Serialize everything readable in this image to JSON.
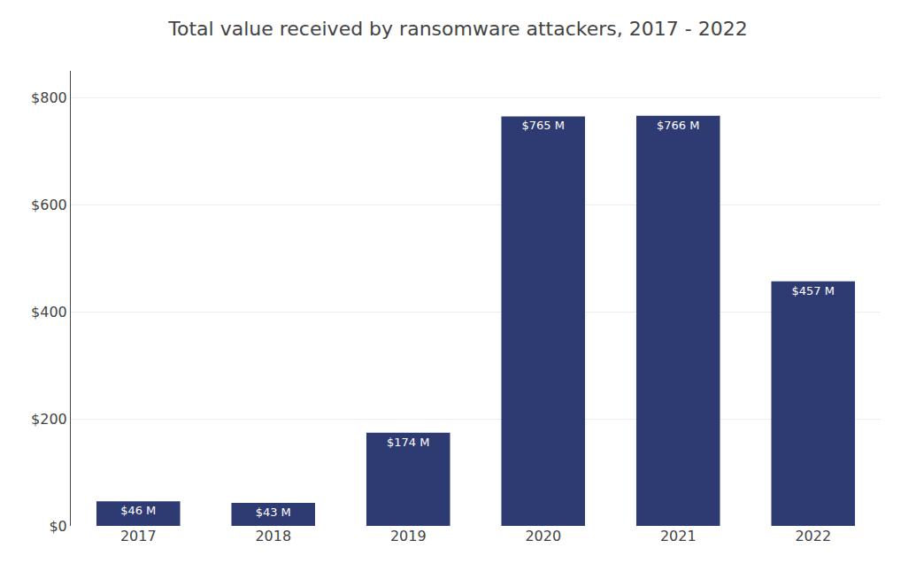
{
  "chart_data": {
    "type": "bar",
    "title": "Total value received by ransomware attackers, 2017 - 2022",
    "categories": [
      "2017",
      "2018",
      "2019",
      "2020",
      "2021",
      "2022"
    ],
    "values": [
      46,
      43,
      174,
      765,
      766,
      457
    ],
    "value_labels": [
      "$46 M",
      "$43 M",
      "$174 M",
      "$765 M",
      "$766 M",
      "$457 M"
    ],
    "data_labels": true,
    "color": "#2E3A72",
    "ylim": [
      0,
      850
    ],
    "yticks": [
      {
        "value": 0,
        "label": "$0"
      },
      {
        "value": 200,
        "label": "$200"
      },
      {
        "value": 400,
        "label": "$400"
      },
      {
        "value": 600,
        "label": "$600"
      },
      {
        "value": 800,
        "label": "$800"
      }
    ],
    "grid": true
  }
}
